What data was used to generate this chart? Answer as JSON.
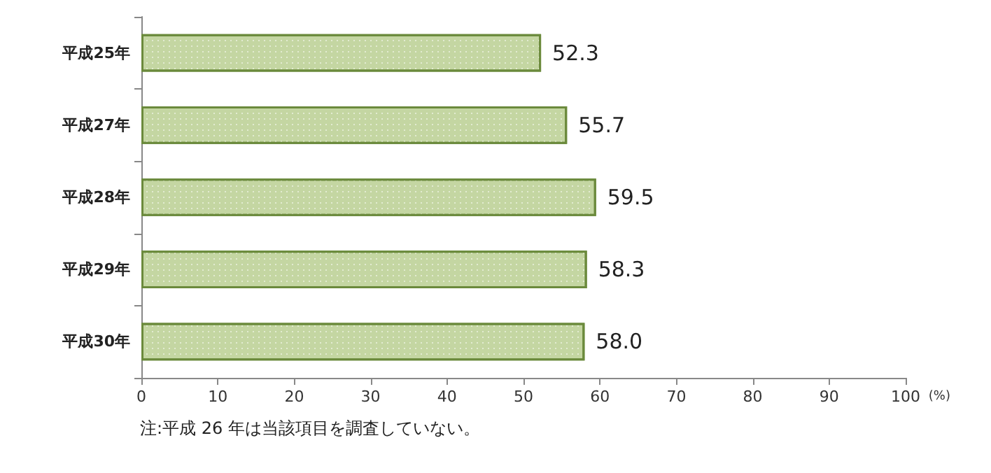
{
  "chart_data": {
    "type": "bar",
    "orientation": "horizontal",
    "categories": [
      "平成25年",
      "平成27年",
      "平成28年",
      "平成29年",
      "平成30年"
    ],
    "values": [
      52.3,
      55.7,
      59.5,
      58.3,
      58.0
    ],
    "color": "#c4d6a2",
    "value_labels": [
      "52.3",
      "55.7",
      "59.5",
      "58.3",
      "58.0"
    ],
    "xlim": [
      0,
      100
    ],
    "xticks": [
      0,
      10,
      20,
      30,
      40,
      50,
      60,
      70,
      80,
      90,
      100
    ],
    "xlabel": "(%)",
    "annotations": [
      "注:平成 26 年は当該項目を調査していない。"
    ]
  }
}
